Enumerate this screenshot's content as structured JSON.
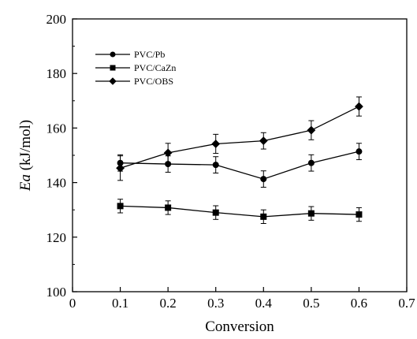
{
  "chart_data": {
    "type": "line",
    "xlabel": "Conversion",
    "ylabel_italic": "Ea",
    "ylabel_rest": " (kJ/mol)",
    "xlim": [
      0,
      0.7
    ],
    "ylim": [
      100,
      200
    ],
    "xticks": [
      "0",
      "0.1",
      "0.2",
      "0.3",
      "0.4",
      "0.5",
      "0.6",
      "0.7"
    ],
    "yticks": [
      "100",
      "120",
      "140",
      "160",
      "180",
      "200"
    ],
    "x": [
      0.1,
      0.2,
      0.3,
      0.4,
      0.5,
      0.6
    ],
    "grid": false,
    "legend_position": "top-left",
    "series": [
      {
        "name": "PVC/Pb",
        "marker": "circle",
        "values": [
          147.2,
          146.8,
          146.5,
          141.3,
          147.2,
          151.4
        ],
        "errors": [
          3.0,
          3.0,
          3.0,
          3.0,
          3.0,
          3.0
        ]
      },
      {
        "name": "PVC/CaZn",
        "marker": "square",
        "values": [
          131.4,
          130.8,
          129.0,
          127.5,
          128.7,
          128.3
        ],
        "errors": [
          2.5,
          2.5,
          2.5,
          2.5,
          2.5,
          2.5
        ]
      },
      {
        "name": "PVC/OBS",
        "marker": "diamond",
        "values": [
          145.3,
          150.9,
          154.2,
          155.3,
          159.2,
          167.9
        ],
        "errors": [
          4.5,
          3.5,
          3.5,
          3.0,
          3.5,
          3.5
        ]
      }
    ]
  }
}
